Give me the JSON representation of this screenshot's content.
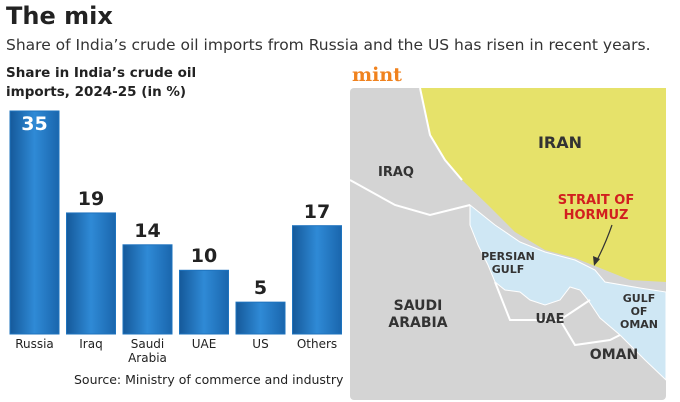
{
  "header": {
    "title": "The mix",
    "subtitle": "Share of India’s crude oil imports from Russia and the US has risen in recent years.",
    "logo": "mint"
  },
  "chart_data": {
    "type": "bar",
    "y_label": "Share in India’s crude oil imports, 2024-25 (in %)",
    "categories": [
      "Russia",
      "Iraq",
      "Saudi Arabia",
      "UAE",
      "US",
      "Others"
    ],
    "values": [
      35,
      19,
      14,
      10,
      5,
      17
    ],
    "color": "#1e73be"
  },
  "source": "Source: Ministry of commerce and industry",
  "map": {
    "labels": [
      "IRAN",
      "IRAQ",
      "STRAIT OF HORMUZ",
      "PERSIAN GULF",
      "SAUDI ARABIA",
      "UAE",
      "GULF OF OMAN",
      "OMAN"
    ]
  }
}
